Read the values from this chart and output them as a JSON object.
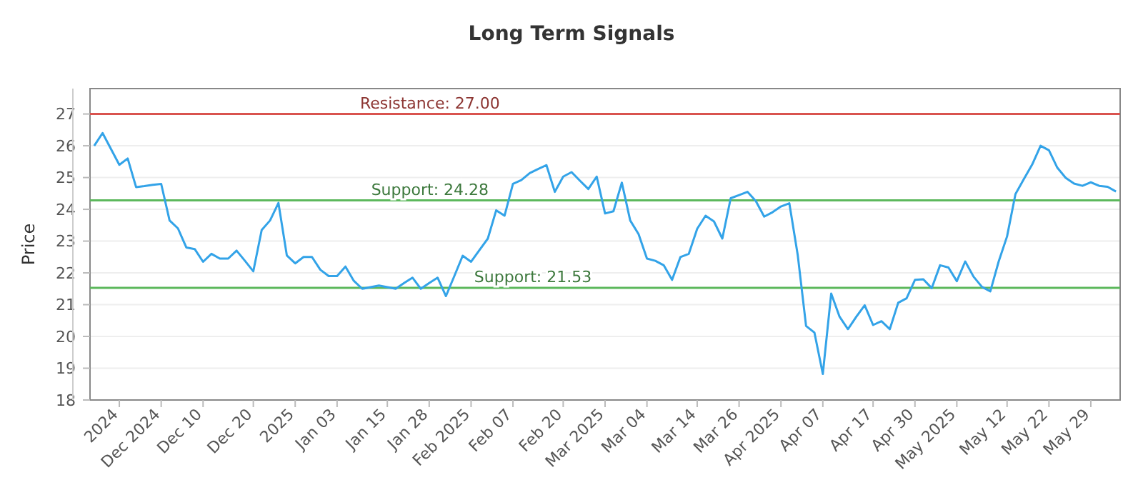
{
  "chart_data": {
    "type": "line",
    "title": "Long Term Signals",
    "ylabel": "Price",
    "categories": [
      null,
      null,
      null,
      "2024",
      null,
      null,
      null,
      null,
      "Dec 2024",
      null,
      null,
      null,
      null,
      "Dec 10",
      null,
      null,
      null,
      null,
      null,
      "Dec 20",
      null,
      null,
      null,
      null,
      "2025",
      null,
      null,
      null,
      null,
      "Jan 03",
      null,
      null,
      null,
      null,
      null,
      "Jan 15",
      null,
      null,
      null,
      null,
      "Jan 28",
      null,
      null,
      null,
      null,
      "Feb 2025",
      null,
      null,
      null,
      null,
      "Feb 07",
      null,
      null,
      null,
      null,
      null,
      "Feb 20",
      null,
      null,
      null,
      null,
      "Mar 2025",
      null,
      null,
      null,
      null,
      "Mar 04",
      null,
      null,
      null,
      null,
      null,
      "Mar 14",
      null,
      null,
      null,
      null,
      "Mar 26",
      null,
      null,
      null,
      null,
      "Apr 2025",
      null,
      null,
      null,
      null,
      "Apr 07",
      null,
      null,
      null,
      null,
      null,
      "Apr 17",
      null,
      null,
      null,
      null,
      "Apr 30",
      null,
      null,
      null,
      null,
      "May 2025",
      null,
      null,
      null,
      null,
      null,
      "May 12",
      null,
      null,
      null,
      null,
      "May 22",
      null,
      null,
      null,
      null,
      "May 29",
      null,
      null,
      null
    ],
    "series": [
      {
        "color": "#33a3e8",
        "values": [
          26.0,
          26.4,
          25.9,
          25.4,
          25.6,
          24.7,
          24.73,
          24.77,
          24.8,
          23.65,
          23.4,
          22.8,
          22.75,
          22.35,
          22.6,
          22.45,
          22.45,
          22.7,
          22.38,
          22.05,
          23.35,
          23.65,
          24.2,
          22.55,
          22.3,
          22.5,
          22.5,
          22.1,
          21.9,
          21.9,
          22.2,
          21.75,
          21.5,
          21.55,
          21.6,
          21.55,
          21.5,
          21.68,
          21.85,
          21.5,
          21.68,
          21.85,
          21.27,
          21.9,
          22.54,
          22.35,
          22.72,
          23.08,
          23.97,
          23.8,
          24.8,
          24.92,
          25.14,
          25.27,
          25.39,
          24.55,
          25.03,
          25.17,
          24.9,
          24.64,
          25.03,
          23.87,
          23.94,
          24.84,
          23.65,
          23.22,
          22.45,
          22.38,
          22.24,
          21.78,
          22.5,
          22.6,
          23.39,
          23.8,
          23.62,
          23.08,
          24.35,
          24.45,
          24.55,
          24.26,
          23.77,
          23.91,
          24.09,
          24.19,
          22.57,
          20.33,
          20.12,
          18.82,
          21.35,
          20.62,
          20.23,
          20.62,
          20.98,
          20.36,
          20.48,
          20.23,
          21.06,
          21.2,
          21.78,
          21.8,
          21.52,
          22.24,
          22.17,
          21.74,
          22.36,
          21.88,
          21.56,
          21.42,
          22.36,
          23.15,
          24.48,
          24.95,
          25.41,
          26.0,
          25.86,
          25.31,
          24.99,
          24.81,
          24.74,
          24.85,
          24.74,
          24.71,
          24.56
        ]
      }
    ],
    "ylim": [
      18,
      27.8
    ],
    "yticks": [
      18,
      19,
      20,
      21,
      22,
      23,
      24,
      25,
      26,
      27
    ],
    "grid": "y",
    "marker": "none",
    "line_style": "solid",
    "ref_lines": [
      {
        "axis": "y",
        "value": 27,
        "label": "Resistance: 27.00",
        "color": "#d9534f"
      },
      {
        "axis": "y",
        "value": 24.28,
        "label": "Support: 24.28",
        "color": "#5cb85c"
      },
      {
        "axis": "y",
        "value": 21.53,
        "label": "Support: 21.53",
        "color": "#5cb85c"
      }
    ]
  }
}
